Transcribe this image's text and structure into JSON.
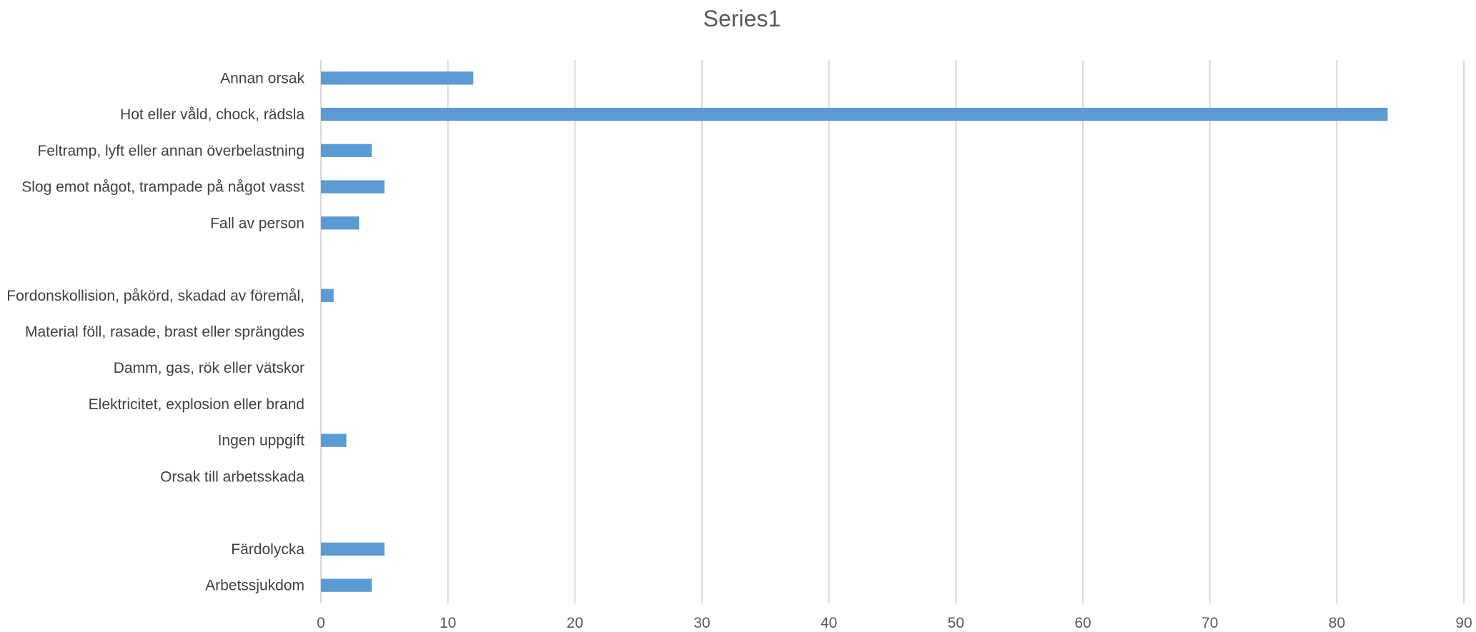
{
  "chart_data": {
    "type": "bar",
    "orientation": "horizontal",
    "title": "Series1",
    "xlabel": "",
    "ylabel": "",
    "xlim": [
      0,
      90
    ],
    "x_ticks": [
      0,
      10,
      20,
      30,
      40,
      50,
      60,
      70,
      80,
      90
    ],
    "grid": true,
    "legend": "none",
    "bar_color": "#5b9bd5",
    "categories": [
      "Annan orsak",
      "Hot eller våld, chock, rädsla",
      "Feltramp, lyft eller annan överbelastning",
      "Slog emot något, trampade på något vasst",
      "Fall av person",
      "",
      "Fordonskollision, påkörd, skadad av föremål,",
      "Material föll, rasade, brast eller sprängdes",
      "Damm, gas, rök eller vätskor",
      "Elektricitet, explosion eller brand",
      "Ingen uppgift",
      "Orsak till arbetsskada",
      "",
      "Färdolycka",
      "Arbetssjukdom"
    ],
    "series": [
      {
        "values": [
          12,
          84,
          4,
          5,
          3,
          null,
          1,
          null,
          null,
          null,
          2,
          null,
          null,
          5,
          4
        ]
      }
    ]
  }
}
